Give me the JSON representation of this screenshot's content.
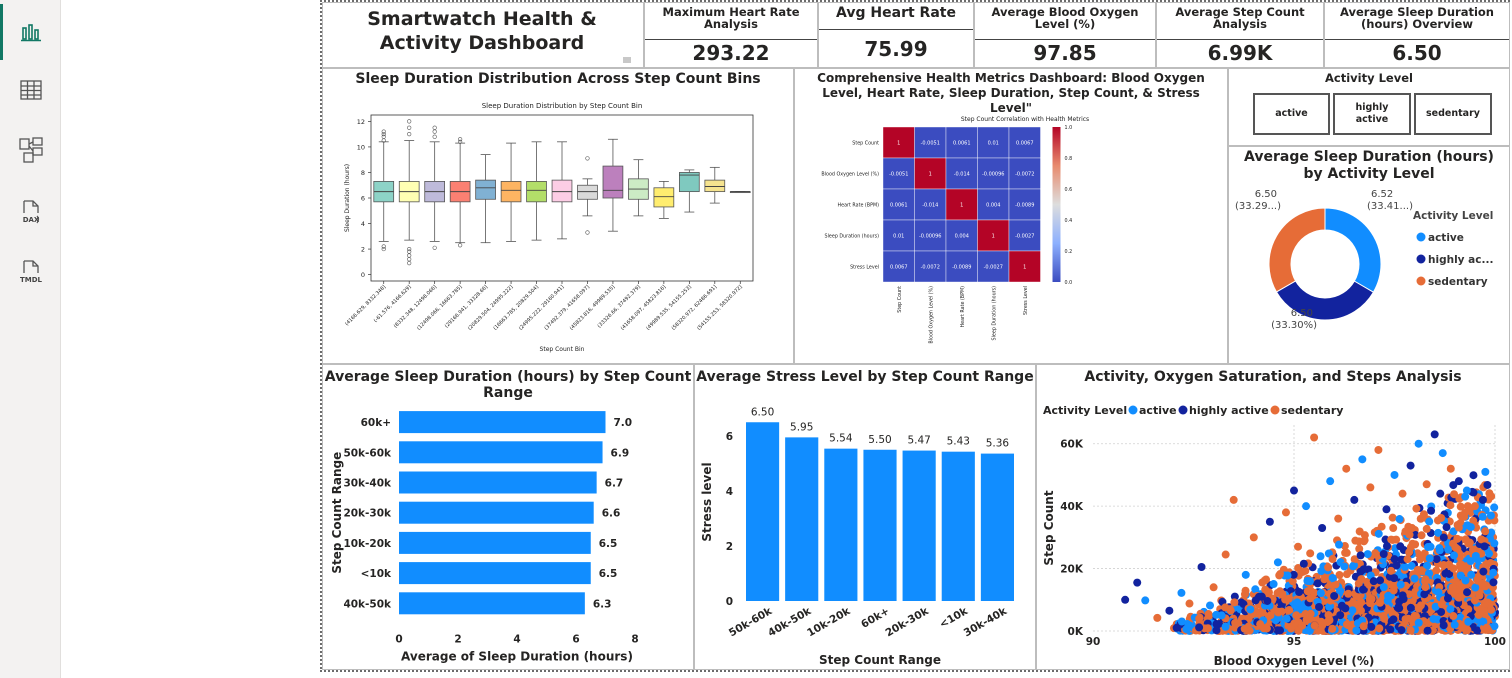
{
  "rail": {
    "items": [
      {
        "name": "report-view-icon"
      },
      {
        "name": "table-view-icon"
      },
      {
        "name": "model-view-icon"
      },
      {
        "name": "dax-query-icon",
        "label": "DAX"
      },
      {
        "name": "tmdl-view-icon",
        "label": "TMDL"
      }
    ]
  },
  "header": {
    "title": "Smartwatch Health & Activity Dashboard"
  },
  "cards": [
    {
      "label": "Maximum Heart Rate Analysis",
      "value": "293.22"
    },
    {
      "label": "Avg Heart Rate",
      "value": "75.99"
    },
    {
      "label": "Average Blood Oxygen Level (%)",
      "value": "97.85"
    },
    {
      "label": "Average Step Count Analysis",
      "value": "6.99K"
    },
    {
      "label": "Average Sleep Duration (hours) Overview",
      "value": "6.50"
    }
  ],
  "boxplot_panel": {
    "title": "Sleep Duration Distribution Across Step Count Bins"
  },
  "heatmap_panel": {
    "title": "Comprehensive Health Metrics Dashboard: Blood Oxygen Level, Heart Rate, Sleep Duration, Step Count, & Stress Level\""
  },
  "slicer": {
    "title": "Activity Level",
    "options": [
      "active",
      "highly active",
      "sedentary"
    ]
  },
  "donut_panel": {
    "title": "Average Sleep Duration (hours) by Activity Level"
  },
  "hbar_panel": {
    "title": "Average Sleep Duration (hours) by Step Count Range"
  },
  "vbar_panel": {
    "title": "Average Stress Level by Step Count Range"
  },
  "scatter_panel": {
    "title": "Activity, Oxygen Saturation, and Steps Analysis"
  },
  "chart_data": [
    {
      "type": "box",
      "title": "Sleep Duration Distribution by Step Count Bin",
      "xlabel": "Step Count Bin",
      "ylabel": "Sleep Duration (hours)",
      "ylim": [
        -0.5,
        12.5
      ],
      "yticks": [
        0,
        2,
        4,
        6,
        8,
        10,
        12
      ],
      "categories": [
        "(4166.629, 8332.348]",
        "(-61.576, 4166.629]",
        "(8332.348, 12498.066]",
        "(12498.066, 16663.785]",
        "(29166.941, 33328.66]",
        "(20829.504, 24995.222]",
        "(16663.785, 20829.504]",
        "(24995.222, 29160.941]",
        "(37492.379, 41658.097]",
        "(45823.816, 49989.535]",
        "(33326.66, 37492.379]",
        "(41658.097, 45823.816]",
        "(49989.535, 54155.253]",
        "(58320.972, 62486.691]",
        "(54155.253, 58320.972]"
      ],
      "colors": [
        "#8dd3c7",
        "#ffffb3",
        "#bebada",
        "#fb8072",
        "#80b1d3",
        "#fdb462",
        "#b3de69",
        "#fccde5",
        "#d9d9d9",
        "#bc80bd",
        "#ccebc5",
        "#ffed6f",
        "#7fc9bf",
        "#f5e38f",
        "#bdbdbd"
      ],
      "stats": [
        [
          2.6,
          5.7,
          6.5,
          7.3,
          10.4
        ],
        [
          2.7,
          5.7,
          6.5,
          7.3,
          10.5
        ],
        [
          2.6,
          5.7,
          6.5,
          7.3,
          10.4
        ],
        [
          2.5,
          5.7,
          6.5,
          7.3,
          10.3
        ],
        [
          2.5,
          5.9,
          6.8,
          7.4,
          9.4
        ],
        [
          2.6,
          5.7,
          6.6,
          7.3,
          10.3
        ],
        [
          2.7,
          5.7,
          6.6,
          7.3,
          10.4
        ],
        [
          2.8,
          5.7,
          6.5,
          7.4,
          10.4
        ],
        [
          4.6,
          5.9,
          6.5,
          7.0,
          7.5
        ],
        [
          3.4,
          6.0,
          6.6,
          8.5,
          10.6
        ],
        [
          4.6,
          5.9,
          6.7,
          7.5,
          9.0
        ],
        [
          4.4,
          5.3,
          6.1,
          6.8,
          7.3
        ],
        [
          4.9,
          6.5,
          7.8,
          8.0,
          8.2
        ],
        [
          5.6,
          6.5,
          6.9,
          7.4,
          8.4
        ],
        [
          6.5,
          6.5,
          6.5,
          6.5,
          6.5
        ]
      ],
      "outliers": [
        [
          10.5,
          10.8,
          11,
          11.2,
          2.2,
          2.0
        ],
        [
          11,
          11.5,
          12,
          2,
          1.8,
          1.5,
          1.2,
          0.9
        ],
        [
          10.8,
          11.2,
          11.5,
          2.1
        ],
        [
          10.4,
          10.6,
          2.3
        ],
        [],
        [],
        [],
        [],
        [
          9.1,
          3.3
        ],
        [],
        [],
        [],
        [],
        [],
        []
      ]
    },
    {
      "type": "heatmap",
      "title": "Step Count Correlation with Health Metrics",
      "rows": [
        "Step Count",
        "Blood Oxygen Level (%)",
        "Heart Rate (BPM)",
        "Sleep Duration (hours)",
        "Stress Level"
      ],
      "cols": [
        "Step Count",
        "Blood Oxygen Level (%)",
        "Heart Rate (BPM)",
        "Sleep Duration (hours)",
        "Stress Level"
      ],
      "cells": [
        [
          "1",
          "-0.0051",
          "0.0061",
          "0.01",
          "0.0067"
        ],
        [
          "-0.0051",
          "1",
          "-0.014",
          "-0.00096",
          "-0.0072"
        ],
        [
          "0.0061",
          "-0.014",
          "1",
          "0.004",
          "-0.0089"
        ],
        [
          "0.01",
          "-0.00096",
          "0.004",
          "1",
          "-0.0027"
        ],
        [
          "0.0067",
          "-0.0072",
          "-0.0089",
          "-0.0027",
          "1"
        ]
      ],
      "scale": [
        "1.0",
        "0.8",
        "0.6",
        "0.4",
        "0.2",
        "0.0"
      ]
    },
    {
      "type": "pie",
      "title": "Average Sleep Duration (hours) by Activity Level",
      "legend_title": "Activity Level",
      "legend": [
        "active",
        "highly ac...",
        "sedentary"
      ],
      "values": [
        6.52,
        6.5,
        6.5
      ],
      "colors": [
        "#118dff",
        "#12239e",
        "#e66c37"
      ],
      "labels": [
        {
          "value": "6.52",
          "pct": "(33.41...)"
        },
        {
          "value": "6.50",
          "pct": "(33.30%)"
        },
        {
          "value": "6.50",
          "pct": "(33.29...)"
        }
      ]
    },
    {
      "type": "bar",
      "orientation": "horizontal",
      "title": "Average Sleep Duration (hours) by Step Count Range",
      "categories": [
        "60k+",
        "50k-60k",
        "30k-40k",
        "20k-30k",
        "10k-20k",
        "<10k",
        "40k-50k"
      ],
      "values": [
        7.0,
        6.9,
        6.7,
        6.6,
        6.5,
        6.5,
        6.3
      ],
      "data_labels": [
        "7.0",
        "6.9",
        "6.7",
        "6.6",
        "6.5",
        "6.5",
        "6.3"
      ],
      "xlabel": "Average of Sleep Duration (hours)",
      "ylabel": "Step Count Range",
      "xlim": [
        0,
        8
      ],
      "xticks": [
        "0",
        "2",
        "4",
        "6",
        "8"
      ],
      "color": "#118dff"
    },
    {
      "type": "bar",
      "title": "Average Stress Level by Step Count Range",
      "categories": [
        "50k-60k",
        "40k-50k",
        "10k-20k",
        "60k+",
        "20k-30k",
        "<10k",
        "30k-40k"
      ],
      "values": [
        6.5,
        5.95,
        5.54,
        5.5,
        5.47,
        5.43,
        5.36
      ],
      "data_labels": [
        "6.50",
        "5.95",
        "5.54",
        "5.50",
        "5.47",
        "5.43",
        "5.36"
      ],
      "xlabel": "Step Count Range",
      "ylabel": "Stress level",
      "ylim": [
        0,
        7.2
      ],
      "yticks": [
        "0",
        "2",
        "4",
        "6"
      ],
      "color": "#118dff"
    },
    {
      "type": "scatter",
      "title": "Activity, Oxygen Saturation, and Steps Analysis",
      "legend_title": "Activity Level",
      "legend": [
        "active",
        "highly active",
        "sedentary"
      ],
      "colors": [
        "#118dff",
        "#12239e",
        "#e66c37"
      ],
      "xlabel": "Blood Oxygen Level (%)",
      "ylabel": "Step Count",
      "xlim": [
        90,
        100
      ],
      "ylim": [
        0,
        66000
      ],
      "xticks": [
        "90",
        "95",
        "100"
      ],
      "yticks": [
        "0K",
        "20K",
        "40K",
        "60K"
      ],
      "points": [
        [
          90.8,
          10000,
          1
        ],
        [
          91.1,
          15500,
          1
        ],
        [
          91.3,
          9800,
          0
        ],
        [
          91.6,
          4200,
          2
        ],
        [
          91.9,
          6500,
          1
        ],
        [
          92.2,
          12200,
          0
        ],
        [
          92.4,
          8800,
          2
        ],
        [
          92.7,
          20500,
          1
        ],
        [
          93.0,
          14000,
          2
        ],
        [
          93.2,
          5000,
          0
        ],
        [
          93.3,
          24500,
          2
        ],
        [
          93.5,
          42000,
          2
        ],
        [
          93.8,
          18000,
          0
        ],
        [
          94.0,
          30000,
          2
        ],
        [
          94.2,
          11000,
          1
        ],
        [
          94.4,
          35000,
          1
        ],
        [
          94.6,
          22000,
          0
        ],
        [
          94.8,
          38000,
          2
        ],
        [
          95.0,
          45000,
          1
        ],
        [
          95.1,
          27000,
          2
        ],
        [
          95.3,
          40000,
          0
        ],
        [
          95.5,
          62000,
          2
        ],
        [
          95.7,
          33000,
          1
        ],
        [
          95.9,
          48000,
          0
        ],
        [
          96.1,
          36000,
          2
        ],
        [
          96.3,
          52000,
          2
        ],
        [
          96.5,
          42000,
          1
        ],
        [
          96.7,
          55000,
          0
        ],
        [
          96.9,
          46000,
          2
        ],
        [
          97.1,
          58000,
          2
        ],
        [
          97.3,
          39000,
          1
        ],
        [
          97.5,
          50000,
          0
        ],
        [
          97.7,
          44000,
          2
        ],
        [
          97.9,
          53000,
          1
        ],
        [
          98.1,
          60000,
          0
        ],
        [
          98.3,
          47000,
          2
        ],
        [
          98.5,
          63000,
          1
        ],
        [
          98.7,
          57000,
          0
        ],
        [
          98.9,
          52000,
          2
        ],
        [
          99.1,
          48000,
          1
        ],
        [
          99.3,
          45000,
          0
        ],
        [
          99.5,
          40000,
          2
        ],
        [
          99.7,
          42000,
          1
        ],
        [
          99.9,
          37000,
          0
        ]
      ],
      "n_background_points": 2600
    }
  ]
}
